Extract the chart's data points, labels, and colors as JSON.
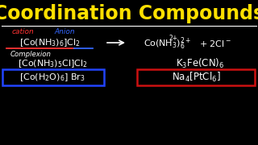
{
  "title": "Coordination Compounds",
  "title_color": "#FFE000",
  "bg_color": "#000000",
  "title_fontsize": 17,
  "cation_label": "cation",
  "anion_label": "Anion",
  "cation_color": "#FF3333",
  "anion_color": "#3366FF",
  "white": "#FFFFFF",
  "row1_left": "[Co(NH$_3$)$_6$]Cl$_2$",
  "row1_right_a": "Co(NH$_3$)$_6^{2+}$",
  "row1_right_b": "+ 2Cl$^-$",
  "complexion_label": "Complexion",
  "row2_left": "[Co(NH$_3$)$_5$Cl]Cl$_2$",
  "row2_right": "K$_3$Fe(CN)$_6$",
  "row3_left": "[Co(H$_2$O)$_6$] Br$_3$",
  "row3_right": "Na$_4$[PtCl$_6$]",
  "blue_box_color": "#2244FF",
  "red_box_color": "#CC1111"
}
